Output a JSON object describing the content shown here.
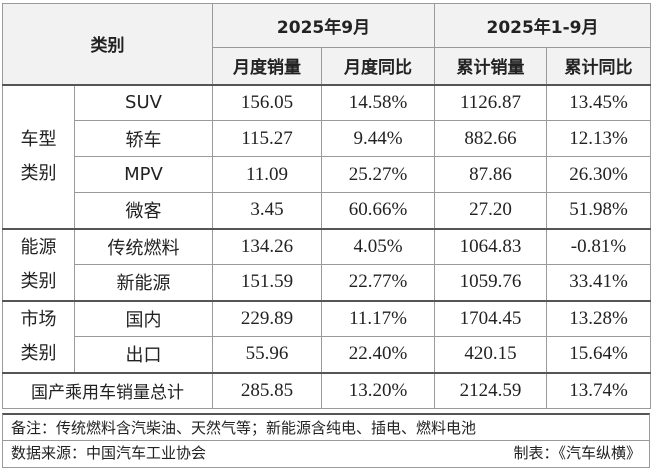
{
  "header": {
    "category": "类别",
    "period_month": "2025年9月",
    "period_ytd": "2025年1-9月",
    "col_month_sales": "月度销量",
    "col_month_yoy": "月度同比",
    "col_ytd_sales": "累计销量",
    "col_ytd_yoy": "累计同比"
  },
  "groups": {
    "vehicle_type": "车型类别",
    "energy": "能源类别",
    "market": "市场类别"
  },
  "rows": [
    {
      "name": "SUV",
      "m_sales": "156.05",
      "m_yoy": "14.58%",
      "y_sales": "1126.87",
      "y_yoy": "13.45%"
    },
    {
      "name": "轿车",
      "m_sales": "115.27",
      "m_yoy": "9.44%",
      "y_sales": "882.66",
      "y_yoy": "12.13%"
    },
    {
      "name": "MPV",
      "m_sales": "11.09",
      "m_yoy": "25.27%",
      "y_sales": "87.86",
      "y_yoy": "26.30%"
    },
    {
      "name": "微客",
      "m_sales": "3.45",
      "m_yoy": "60.66%",
      "y_sales": "27.20",
      "y_yoy": "51.98%"
    },
    {
      "name": "传统燃料",
      "m_sales": "134.26",
      "m_yoy": "4.05%",
      "y_sales": "1064.83",
      "y_yoy": "-0.81%"
    },
    {
      "name": "新能源",
      "m_sales": "151.59",
      "m_yoy": "22.77%",
      "y_sales": "1059.76",
      "y_yoy": "33.41%"
    },
    {
      "name": "国内",
      "m_sales": "229.89",
      "m_yoy": "11.17%",
      "y_sales": "1704.45",
      "y_yoy": "13.28%"
    },
    {
      "name": "出口",
      "m_sales": "55.96",
      "m_yoy": "22.40%",
      "y_sales": "420.15",
      "y_yoy": "15.64%"
    }
  ],
  "total": {
    "name": "国产乘用车销量总计",
    "m_sales": "285.85",
    "m_yoy": "13.20%",
    "y_sales": "2124.59",
    "y_yoy": "13.74%"
  },
  "footer": {
    "note": "备注：传统燃料含汽柴油、天然气等；新能源含纯电、插电、燃料电池",
    "source": "数据来源：中国汽车工业协会",
    "maker": "制表：《汽车纵横》"
  }
}
